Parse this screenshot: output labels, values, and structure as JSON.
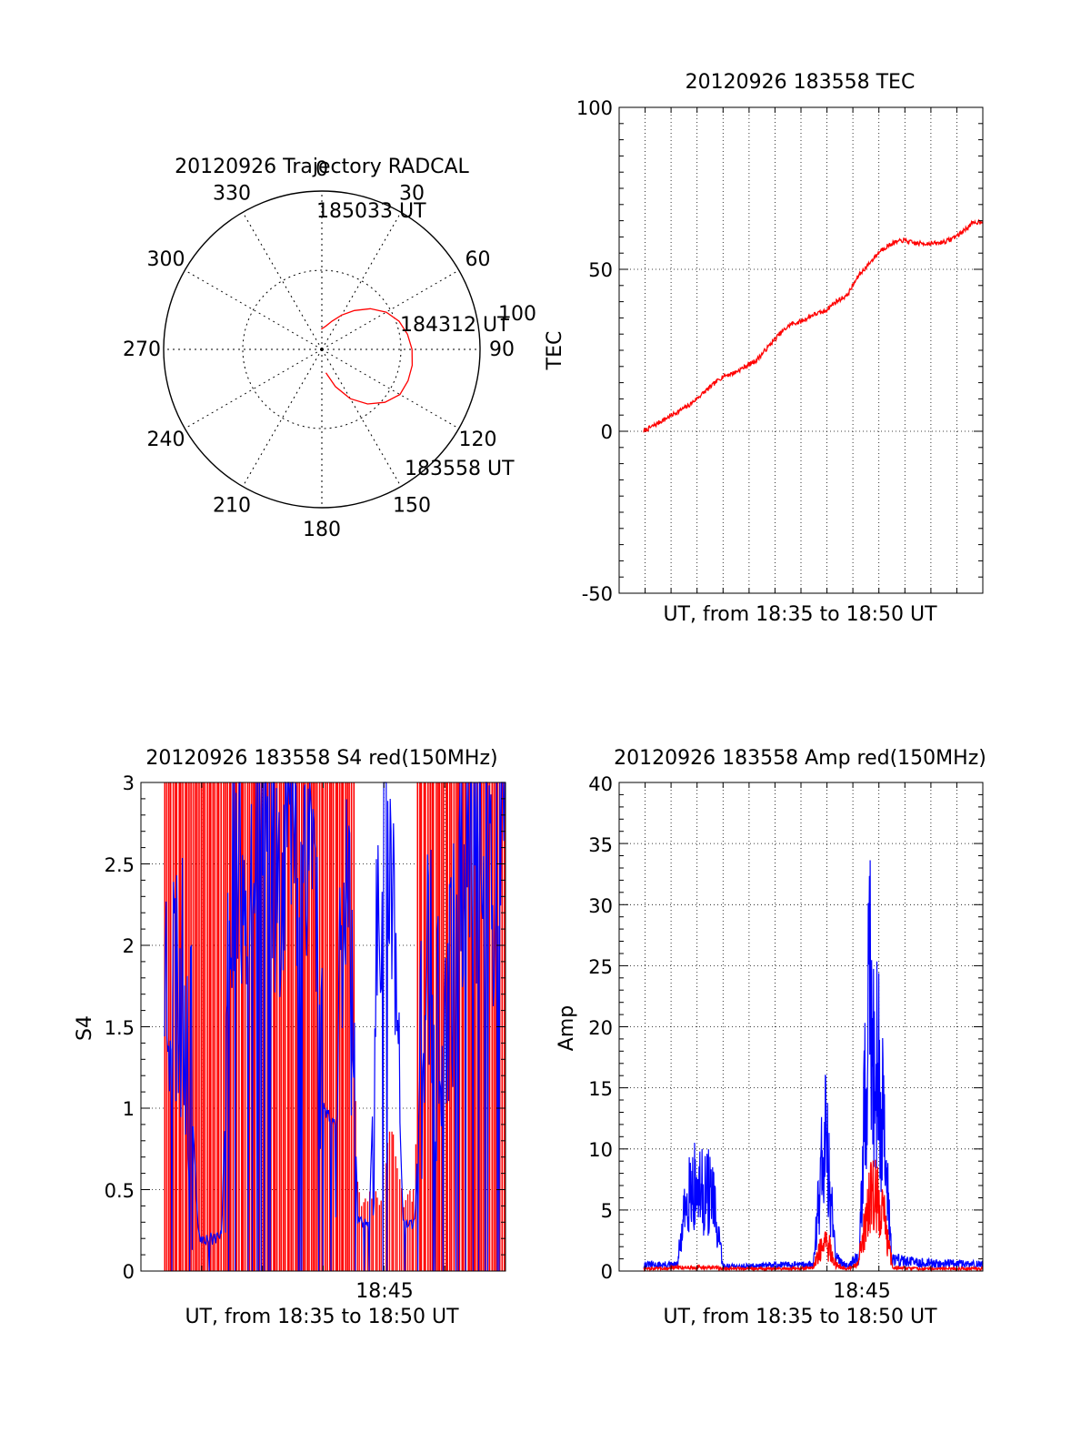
{
  "figure": {
    "polar": {
      "title": "20120926 Trajectory RADCAL",
      "type": "polar-trajectory",
      "angle_labels": [
        "0",
        "30",
        "60",
        "90",
        "120",
        "150",
        "180",
        "210",
        "240",
        "270",
        "300",
        "330"
      ],
      "radial_label": "100",
      "start_label": "183558 UT",
      "mid_label": "184312 UT",
      "end_label": "185033 UT",
      "colors": {
        "trajectory": "#ff0000",
        "axes": "#000000"
      }
    },
    "tec": {
      "title": "20120926 183558 TEC",
      "ylabel": "TEC",
      "xlabel": "UT, from 18:35 to 18:50 UT",
      "yticks": [
        "100",
        "50",
        "0",
        "-50"
      ],
      "color": "#ff0000"
    },
    "s4": {
      "title": "20120926 183558 S4 red(150MHz)",
      "ylabel": "S4",
      "xlabel": "UT, from 18:35 to 18:50 UT",
      "xtick": "18:45",
      "yticks": [
        "0",
        "0.5",
        "1",
        "1.5",
        "2",
        "2.5",
        "3"
      ],
      "colors": {
        "red": "#ff0000",
        "blue": "#0000ff"
      }
    },
    "amp": {
      "title": "20120926 183558 Amp red(150MHz)",
      "ylabel": "Amp",
      "xlabel": "UT, from 18:35 to 18:50 UT",
      "xtick": "18:45",
      "yticks": [
        "0",
        "5",
        "10",
        "15",
        "20",
        "25",
        "30",
        "35",
        "40"
      ],
      "colors": {
        "red": "#ff0000",
        "blue": "#0000ff"
      }
    }
  },
  "chart_data": [
    {
      "type": "polar",
      "title": "20120926 Trajectory RADCAL",
      "rlim": [
        0,
        100
      ],
      "series": [
        {
          "name": "",
          "points": [
            [
              170,
              15
            ],
            [
              160,
              25
            ],
            [
              150,
              36
            ],
            [
              140,
              45
            ],
            [
              130,
              52
            ],
            [
              120,
              57
            ],
            [
              110,
              58
            ],
            [
              100,
              58
            ],
            [
              90,
              57
            ],
            [
              80,
              55
            ],
            [
              70,
              52
            ],
            [
              60,
              47
            ],
            [
              50,
              40
            ],
            [
              40,
              32
            ],
            [
              30,
              25
            ],
            [
              20,
              19
            ],
            [
              10,
              15
            ],
            [
              0,
              13
            ],
            [
              -2,
              13
            ]
          ]
        }
      ],
      "annotations": [
        "183558 UT",
        "184312 UT",
        "185033 UT"
      ]
    },
    {
      "type": "line",
      "title": "20120926 183558 TEC",
      "xlabel": "UT, from 18:35 to 18:50 UT",
      "ylabel": "TEC",
      "xlim": [
        0,
        15
      ],
      "ylim": [
        -50,
        100
      ],
      "series": [
        {
          "name": "",
          "x": [
            0,
            0.5,
            1,
            1.5,
            2,
            2.5,
            3,
            3.5,
            4,
            4.5,
            5,
            5.5,
            6,
            6.5,
            7,
            7.5,
            8,
            8.5,
            9,
            9.5,
            10,
            10.5,
            11,
            11.5,
            12,
            12.5,
            13,
            13.5,
            14,
            14.5,
            15
          ],
          "y": [
            0,
            2,
            4,
            6,
            8,
            11,
            14,
            17,
            18,
            20,
            22,
            26,
            30,
            33,
            34,
            36,
            37,
            40,
            42,
            48,
            52,
            56,
            58,
            59,
            58,
            58,
            58,
            59,
            61,
            64,
            65
          ]
        }
      ]
    },
    {
      "type": "line",
      "title": "20120926 183558 S4 red(150MHz)",
      "xlabel": "UT, from 18:35 to 18:50 UT",
      "ylabel": "S4",
      "xlim": [
        0,
        15
      ],
      "ylim": [
        0,
        3
      ],
      "xticks": [
        {
          "x": 10,
          "label": "18:45"
        }
      ],
      "series": [
        {
          "name": "red(150MHz)",
          "x": [
            0,
            0.5,
            1,
            1.5,
            2,
            2.5,
            3,
            3.5,
            4,
            4.5,
            5,
            5.5,
            6,
            6.5,
            7,
            7.5,
            8,
            8.5,
            9,
            9.5,
            10,
            10.5,
            11,
            11.5,
            12,
            12.5,
            13,
            13.5,
            14,
            14.5,
            15
          ],
          "y": [
            2.0,
            3,
            3,
            3,
            3,
            3,
            3,
            3,
            3,
            3,
            3,
            3,
            3,
            3,
            3,
            3,
            3,
            0.4,
            0.35,
            0.4,
            0.8,
            0.35,
            0.4,
            3,
            3,
            3,
            3,
            3,
            3,
            3,
            3
          ]
        },
        {
          "name": "",
          "x": [
            0,
            0.5,
            1,
            1.5,
            2,
            2.5,
            3,
            3.5,
            4,
            4.5,
            5,
            5.5,
            6,
            6.5,
            7,
            7.5,
            8,
            8.5,
            9,
            9.5,
            10,
            10.5,
            11,
            11.5,
            12,
            12.5,
            13,
            13.5,
            14,
            14.5,
            15
          ],
          "y": [
            1.9,
            1.8,
            1.6,
            0.21,
            0.2,
            0.21,
            2.6,
            2.5,
            2.8,
            2.7,
            2.5,
            2.9,
            2.7,
            2.8,
            1.0,
            0.9,
            2.9,
            0.3,
            0.28,
            2.6,
            2.5,
            0.28,
            0.3,
            2.0,
            1.3,
            1.5,
            2.6,
            2.7,
            2.6,
            2.5,
            2.8
          ]
        }
      ]
    },
    {
      "type": "line",
      "title": "20120926 183558 Amp red(150MHz)",
      "xlabel": "UT, from 18:35 to 18:50 UT",
      "ylabel": "Amp",
      "xlim": [
        0,
        15
      ],
      "ylim": [
        0,
        40
      ],
      "xticks": [
        {
          "x": 10,
          "label": "18:45"
        }
      ],
      "series": [
        {
          "name": "",
          "x": [
            0,
            1,
            1.5,
            2,
            2.5,
            3,
            3.5,
            4,
            5,
            6,
            7,
            7.5,
            8,
            8.5,
            9,
            9.5,
            10,
            10.5,
            11,
            12,
            13,
            14,
            15
          ],
          "y": [
            0.5,
            0.5,
            0.5,
            9,
            8,
            8,
            0.4,
            0.4,
            0.4,
            0.5,
            0.5,
            0.5,
            15,
            1,
            0.5,
            1,
            28,
            18,
            1,
            0.7,
            0.6,
            0.6,
            0.5
          ]
        },
        {
          "name": "red(150MHz)",
          "x": [
            0,
            1,
            1.5,
            2,
            2.5,
            3,
            3.5,
            4,
            5,
            6,
            7,
            7.5,
            8,
            8.5,
            9,
            9.5,
            10,
            10.5,
            11,
            12,
            13,
            14,
            15
          ],
          "y": [
            0.2,
            0.2,
            0.3,
            0.3,
            0.3,
            0.3,
            0.2,
            0.2,
            0.2,
            0.2,
            0.2,
            0.3,
            3,
            0.5,
            0.2,
            0.5,
            8,
            7,
            0.3,
            0.2,
            0.2,
            0.2,
            0.2
          ]
        }
      ]
    }
  ]
}
